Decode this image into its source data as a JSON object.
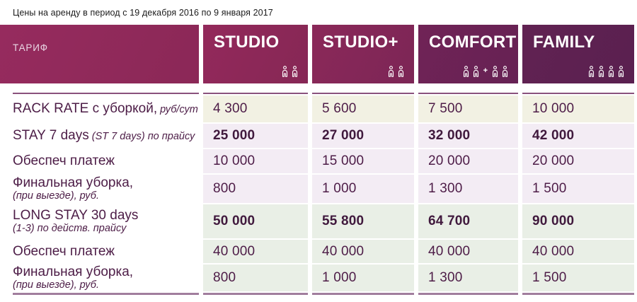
{
  "title": "Цены на аренду в период с 19 декабря 2016 по 9 января 2017",
  "header": {
    "tariff_label": "ТАРИФ",
    "plus_sign": "+",
    "columns": [
      {
        "label": "STUDIO",
        "groups": [
          2
        ]
      },
      {
        "label": "STUDIO+",
        "groups": [
          2
        ]
      },
      {
        "label": "COMFORT",
        "groups": [
          2,
          2
        ]
      },
      {
        "label": "FAMILY",
        "groups": [
          4
        ]
      }
    ]
  },
  "rows": [
    {
      "label": "RACK RATE с уборкой,",
      "suffix": "руб/сут",
      "sub": "",
      "values": [
        "4 300",
        "5 600",
        "7 500",
        "10 000"
      ],
      "bold": false,
      "tone": "cream"
    },
    {
      "label": "STAY 7 days",
      "suffix": "(ST 7 days) по прайсу",
      "sub": "",
      "values": [
        "25 000",
        "27 000",
        "32 000",
        "42 000"
      ],
      "bold": true,
      "tone": "lavender"
    },
    {
      "label": "Обеспеч платеж",
      "suffix": "",
      "sub": "",
      "values": [
        "10 000",
        "15 000",
        "20 000",
        "20 000"
      ],
      "bold": false,
      "tone": "lavender"
    },
    {
      "label": "Финальная уборка,",
      "suffix": "",
      "sub": "(при выезде), руб.",
      "values": [
        "800",
        "1 000",
        "1 300",
        "1 500"
      ],
      "bold": false,
      "tone": "lavender"
    },
    {
      "label": "LONG STAY 30 days",
      "suffix": "",
      "sub": "(1-3) по действ. прайсу",
      "values": [
        "50 000",
        "55 800",
        "64 700",
        "90 000"
      ],
      "bold": true,
      "tone": "mint"
    },
    {
      "label": "Обеспеч платеж",
      "suffix": "",
      "sub": "",
      "values": [
        "40 000",
        "40 000",
        "40 000",
        "40 000"
      ],
      "bold": false,
      "tone": "mint"
    },
    {
      "label": "Финальная уборка,",
      "suffix": "",
      "sub": "(при выезде), руб.",
      "values": [
        "800",
        "1 000",
        "1 300",
        "1 500"
      ],
      "bold": false,
      "tone": "mint"
    }
  ],
  "colors": {
    "title_text": "#1b1b1b",
    "tariff_text": "#e9d7e4",
    "label_text": "#4c1c46",
    "value_text": "#4d1c47",
    "bold_value_text": "#40193d",
    "cream_bg": "#f2f1e3",
    "lavender_bg": "#f3ecf4",
    "mint_bg": "#e9efe6",
    "top_line": "#8a517c",
    "bottom_line": "#a17e9d",
    "h_tariff_a": "#962b5e",
    "h_tariff_b": "#8b2857",
    "h0a": "#93295b",
    "h0b": "#862755",
    "h1a": "#8b2859",
    "h1b": "#7c2656",
    "h2a": "#702356",
    "h2b": "#662254",
    "h3a": "#612252",
    "h3b": "#5a2050"
  }
}
